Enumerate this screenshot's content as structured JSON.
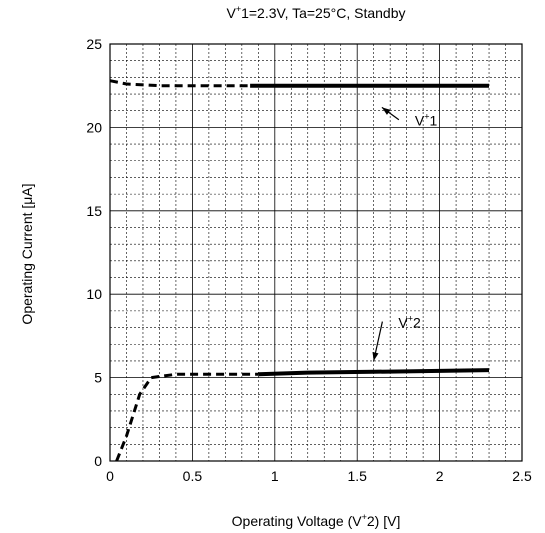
{
  "chart_data": {
    "type": "line",
    "title_parts": {
      "a": "V",
      "sup": "+",
      "b": "1=2.3V, Ta=25°C, Standby"
    },
    "xlabel_parts": {
      "a": "Operating Voltage (V",
      "sup": "+",
      "b": "2) [V]"
    },
    "ylabel": "Operating Current [μA]",
    "xlim": [
      0,
      2.5
    ],
    "ylim": [
      0,
      25
    ],
    "x_ticks": [
      "0",
      "0.5",
      "1",
      "1.5",
      "2",
      "2.5"
    ],
    "y_ticks": [
      "0",
      "5",
      "10",
      "15",
      "20",
      "25"
    ],
    "grid": "major solid, minor dashed",
    "series": [
      {
        "name": "V+1",
        "solid": [
          [
            0.85,
            22.5
          ],
          [
            1.0,
            22.5
          ],
          [
            1.5,
            22.5
          ],
          [
            2.0,
            22.5
          ],
          [
            2.3,
            22.5
          ]
        ],
        "dashed": [
          [
            0.0,
            22.8
          ],
          [
            0.1,
            22.6
          ],
          [
            0.3,
            22.5
          ],
          [
            0.6,
            22.5
          ],
          [
            0.85,
            22.5
          ]
        ]
      },
      {
        "name": "V+2",
        "solid": [
          [
            0.9,
            5.2
          ],
          [
            1.2,
            5.3
          ],
          [
            1.6,
            5.35
          ],
          [
            2.0,
            5.4
          ],
          [
            2.3,
            5.45
          ]
        ],
        "dashed": [
          [
            0.04,
            0.0
          ],
          [
            0.1,
            1.5
          ],
          [
            0.18,
            4.0
          ],
          [
            0.25,
            5.0
          ],
          [
            0.4,
            5.2
          ],
          [
            0.9,
            5.2
          ]
        ]
      }
    ],
    "annotations": [
      {
        "label_a": "V",
        "sup": "+",
        "label_b": "1",
        "series": "V+1",
        "text_at": [
          1.85,
          20.1
        ],
        "arrow_to": [
          1.65,
          21.2
        ]
      },
      {
        "label_a": "V",
        "sup": "+",
        "label_b": "2",
        "series": "V+2",
        "text_at": [
          1.75,
          8.0
        ],
        "arrow_to": [
          1.6,
          6.0
        ]
      }
    ]
  }
}
